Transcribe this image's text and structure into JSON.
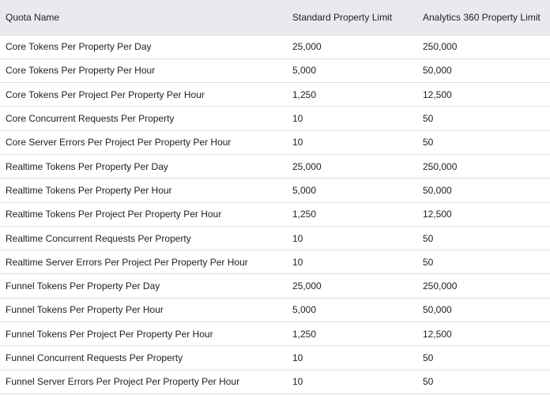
{
  "table": {
    "headers": [
      "Quota Name",
      "Standard Property Limit",
      "Analytics 360 Property Limit"
    ],
    "rows": [
      [
        "Core Tokens Per Property Per Day",
        "25,000",
        "250,000"
      ],
      [
        "Core Tokens Per Property Per Hour",
        "5,000",
        "50,000"
      ],
      [
        "Core Tokens Per Project Per Property Per Hour",
        "1,250",
        "12,500"
      ],
      [
        "Core Concurrent Requests Per Property",
        "10",
        "50"
      ],
      [
        "Core Server Errors Per Project Per Property Per Hour",
        "10",
        "50"
      ],
      [
        "Realtime Tokens Per Property Per Day",
        "25,000",
        "250,000"
      ],
      [
        "Realtime Tokens Per Property Per Hour",
        "5,000",
        "50,000"
      ],
      [
        "Realtime Tokens Per Project Per Property Per Hour",
        "1,250",
        "12,500"
      ],
      [
        "Realtime Concurrent Requests Per Property",
        "10",
        "50"
      ],
      [
        "Realtime Server Errors Per Project Per Property Per Hour",
        "10",
        "50"
      ],
      [
        "Funnel Tokens Per Property Per Day",
        "25,000",
        "250,000"
      ],
      [
        "Funnel Tokens Per Property Per Hour",
        "5,000",
        "50,000"
      ],
      [
        "Funnel Tokens Per Project Per Property Per Hour",
        "1,250",
        "12,500"
      ],
      [
        "Funnel Concurrent Requests Per Property",
        "10",
        "50"
      ],
      [
        "Funnel Server Errors Per Project Per Property Per Hour",
        "10",
        "50"
      ]
    ]
  }
}
